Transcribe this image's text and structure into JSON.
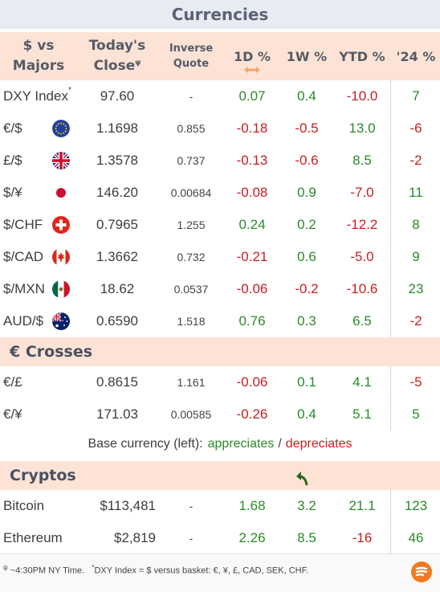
{
  "title": "Currencies",
  "header": {
    "pair": [
      "$ vs",
      "Majors"
    ],
    "close": [
      "Today's",
      "Close"
    ],
    "close_mark": "ψ",
    "inverse": [
      "Inverse",
      "Quote"
    ],
    "d1": "1D %",
    "w1": "1W %",
    "ytd": "YTD %",
    "y24": "'24 %"
  },
  "majors": [
    {
      "name": "DXY Index",
      "mark": "*",
      "flag": "",
      "close": "97.60",
      "inverse": "-",
      "d1": "0.07",
      "w1": "0.4",
      "ytd": "-10.0",
      "y24": "7"
    },
    {
      "name": "€/$",
      "mark": "",
      "flag": "eu",
      "close": "1.1698",
      "inverse": "0.855",
      "d1": "-0.18",
      "w1": "-0.5",
      "ytd": "13.0",
      "y24": "-6"
    },
    {
      "name": "£/$",
      "mark": "",
      "flag": "uk",
      "close": "1.3578",
      "inverse": "0.737",
      "d1": "-0.13",
      "w1": "-0.6",
      "ytd": "8.5",
      "y24": "-2"
    },
    {
      "name": "$/¥",
      "mark": "",
      "flag": "jp",
      "close": "146.20",
      "inverse": "0.00684",
      "d1": "-0.08",
      "w1": "0.9",
      "ytd": "-7.0",
      "y24": "11"
    },
    {
      "name": "$/CHF",
      "mark": "",
      "flag": "ch",
      "close": "0.7965",
      "inverse": "1.255",
      "d1": "0.24",
      "w1": "0.2",
      "ytd": "-12.2",
      "y24": "8"
    },
    {
      "name": "$/CAD",
      "mark": "",
      "flag": "ca",
      "close": "1.3662",
      "inverse": "0.732",
      "d1": "-0.21",
      "w1": "0.6",
      "ytd": "-5.0",
      "y24": "9"
    },
    {
      "name": "$/MXN",
      "mark": "",
      "flag": "mx",
      "close": "18.62",
      "inverse": "0.0537",
      "d1": "-0.06",
      "w1": "-0.2",
      "ytd": "-10.6",
      "y24": "23"
    },
    {
      "name": "AUD/$",
      "mark": "",
      "flag": "au",
      "close": "0.6590",
      "inverse": "1.518",
      "d1": "0.76",
      "w1": "0.3",
      "ytd": "6.5",
      "y24": "-2"
    }
  ],
  "crosses_title": "€ Crosses",
  "crosses": [
    {
      "name": "€/£",
      "close": "0.8615",
      "inverse": "1.161",
      "d1": "-0.06",
      "w1": "0.1",
      "ytd": "4.1",
      "y24": "-5"
    },
    {
      "name": "€/¥",
      "close": "171.03",
      "inverse": "0.00585",
      "d1": "-0.26",
      "w1": "0.4",
      "ytd": "5.1",
      "y24": "5"
    }
  ],
  "legend": {
    "prefix": "Base currency (left):",
    "appreciates": "appreciates",
    "sep": "/",
    "depreciates": "depreciates"
  },
  "cryptos_title": "Cryptos",
  "cryptos": [
    {
      "name": "Bitcoin",
      "close": "$113,481",
      "inverse": "-",
      "d1": "1.68",
      "w1": "3.2",
      "ytd": "21.1",
      "y24": "123"
    },
    {
      "name": "Ethereum",
      "close": "$2,819",
      "inverse": "-",
      "d1": "2.26",
      "w1": "8.5",
      "ytd": "-16",
      "y24": "46"
    }
  ],
  "footnote": {
    "mark1": "ψ",
    "text1": " ~4:30PM NY Time.",
    "mark2": "*",
    "text2": "DXY Index = $ versus basket: €, ¥, £, CAD, SEK, CHF."
  },
  "colors": {
    "positive": "#2a8a2a",
    "negative": "#c81e1e",
    "header_bg": "#fde3d6",
    "title_bg": "#e8ecf2",
    "brand": "#f47a20"
  },
  "icons": {
    "swap": "swap-arrows-icon",
    "trend": "curved-arrow-icon",
    "logo": "brand-logo-icon"
  }
}
